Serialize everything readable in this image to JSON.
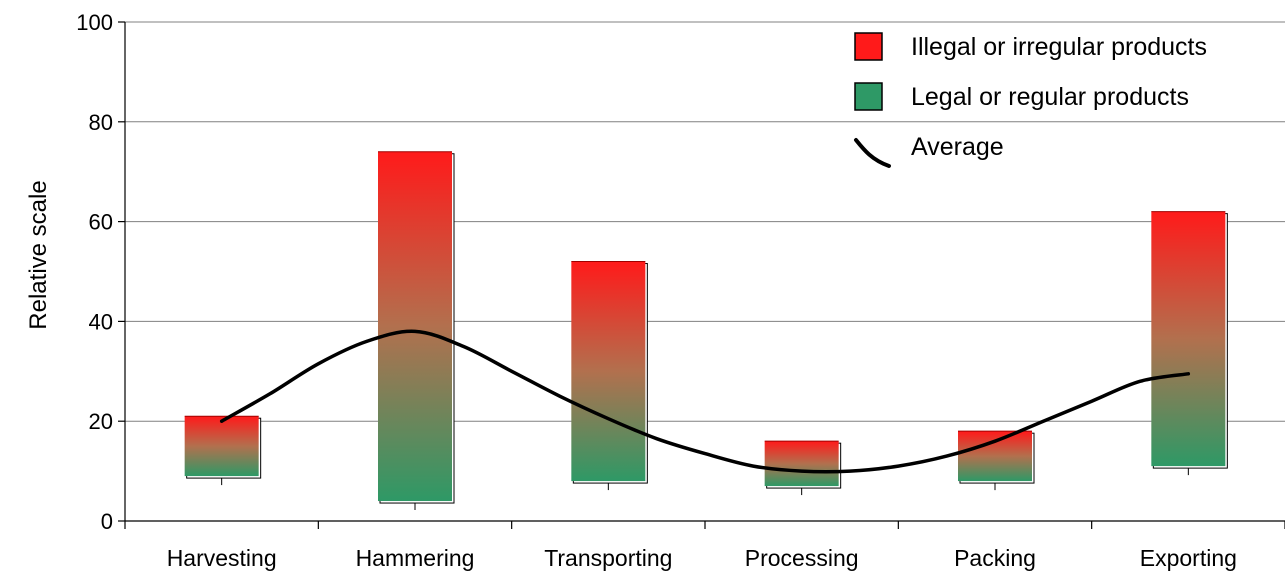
{
  "chart_data": {
    "type": "bar",
    "title": "",
    "xlabel": "",
    "ylabel": "Relative scale",
    "ylim": [
      0,
      100
    ],
    "yticks": [
      0,
      20,
      40,
      60,
      80,
      100
    ],
    "grid": true,
    "legend_position": "top-right",
    "categories": [
      "Harvesting",
      "Hammering",
      "Transporting",
      "Processing",
      "Packing",
      "Exporting"
    ],
    "bars": {
      "low": [
        9,
        4,
        8,
        7,
        8,
        11
      ],
      "high": [
        21,
        74,
        52,
        16,
        18,
        62
      ]
    },
    "average": {
      "x": [
        0,
        0.25,
        0.5,
        0.75,
        1,
        1.25,
        1.5,
        1.75,
        2,
        2.25,
        2.5,
        2.75,
        3,
        3.25,
        3.5,
        3.75,
        4,
        4.25,
        4.5,
        4.75,
        5
      ],
      "y": [
        20,
        25.5,
        31.5,
        36,
        38,
        35,
        30,
        25,
        20.5,
        16.5,
        13.5,
        11,
        10,
        10,
        11,
        13,
        16,
        20,
        24,
        28,
        29.5
      ]
    },
    "legend": [
      {
        "label": "Illegal or irregular products",
        "color": "#ff1a1a",
        "symbol": "box"
      },
      {
        "label": "Legal or regular products",
        "color": "#2e9966",
        "symbol": "box"
      },
      {
        "label": "Average",
        "color": "#000000",
        "symbol": "line"
      }
    ],
    "colors": {
      "illegal": "#ff1a1a",
      "legal": "#2e9966",
      "average_line": "#000000",
      "grid": "#808080"
    }
  }
}
